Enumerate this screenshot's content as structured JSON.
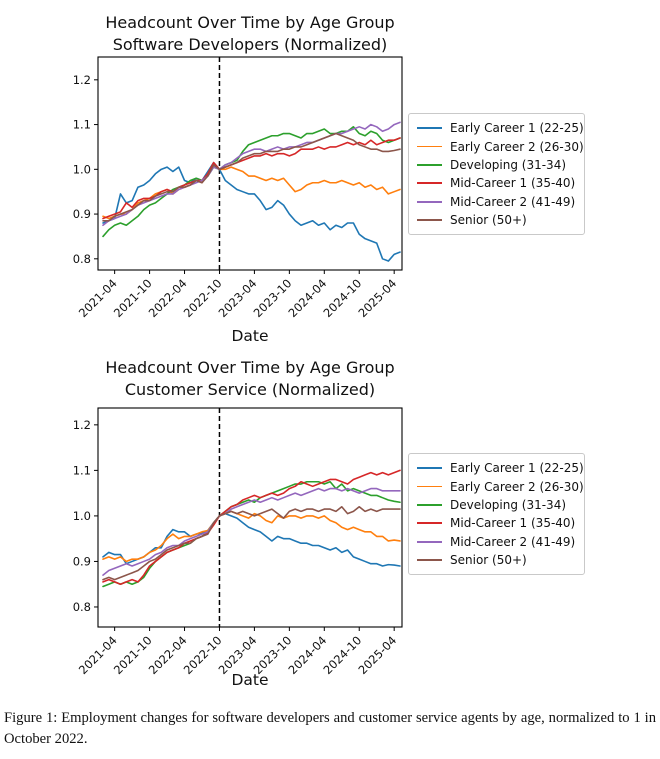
{
  "caption": "Figure 1: Employment changes for software developers and customer service agents by age, normalized to 1 in October 2022.",
  "chart_data": [
    {
      "type": "line",
      "title_line1": "Headcount Over Time by Age Group",
      "title_line2": "Software Developers (Normalized)",
      "xlabel": "Date",
      "ylabel": "",
      "grid": false,
      "legend_position": "right-outside",
      "ylim": [
        0.775,
        1.251
      ],
      "ytick_labels": [
        "0.8",
        "0.9",
        "1.0",
        "1.1",
        "1.2"
      ],
      "x_start": "2021-02",
      "x_end": "2025-05",
      "x_interval": "monthly",
      "n_points": 52,
      "xtick_labels": [
        "2021-04",
        "2021-10",
        "2022-04",
        "2022-10",
        "2023-04",
        "2023-10",
        "2024-04",
        "2024-10",
        "2025-04"
      ],
      "xtick_indices": [
        2,
        8,
        14,
        20,
        26,
        32,
        38,
        44,
        50
      ],
      "vline": {
        "label": "2022-10",
        "index": 20,
        "style": "dashed",
        "color": "#000000"
      },
      "series": [
        {
          "name": "Early Career 1 (22-25)",
          "color": "#1f77b4",
          "values": [
            0.88,
            0.885,
            0.89,
            0.945,
            0.925,
            0.93,
            0.96,
            0.965,
            0.975,
            0.99,
            1.0,
            1.005,
            0.995,
            1.005,
            0.975,
            0.97,
            0.98,
            0.975,
            0.995,
            1.015,
            1.0,
            0.975,
            0.965,
            0.955,
            0.95,
            0.945,
            0.945,
            0.93,
            0.91,
            0.915,
            0.93,
            0.92,
            0.9,
            0.885,
            0.875,
            0.88,
            0.885,
            0.875,
            0.88,
            0.865,
            0.875,
            0.87,
            0.88,
            0.88,
            0.855,
            0.845,
            0.84,
            0.835,
            0.8,
            0.795,
            0.81,
            0.815
          ]
        },
        {
          "name": "Early Career 2 (26-30)",
          "color": "#ff7f0e",
          "values": [
            0.895,
            0.89,
            0.895,
            0.9,
            0.9,
            0.91,
            0.925,
            0.93,
            0.935,
            0.945,
            0.95,
            0.955,
            0.945,
            0.955,
            0.96,
            0.965,
            0.975,
            0.97,
            0.99,
            1.01,
            1.0,
            1.0,
            1.005,
            1.0,
            0.995,
            0.985,
            0.985,
            0.98,
            0.975,
            0.98,
            0.975,
            0.98,
            0.965,
            0.95,
            0.955,
            0.965,
            0.97,
            0.97,
            0.975,
            0.97,
            0.97,
            0.975,
            0.97,
            0.965,
            0.97,
            0.96,
            0.965,
            0.955,
            0.96,
            0.945,
            0.95,
            0.955
          ]
        },
        {
          "name": "Developing (31-34)",
          "color": "#2ca02c",
          "values": [
            0.85,
            0.865,
            0.875,
            0.88,
            0.875,
            0.885,
            0.895,
            0.91,
            0.92,
            0.925,
            0.935,
            0.945,
            0.955,
            0.96,
            0.965,
            0.975,
            0.98,
            0.975,
            0.985,
            1.005,
            1.0,
            1.01,
            1.015,
            1.02,
            1.04,
            1.055,
            1.06,
            1.065,
            1.07,
            1.075,
            1.075,
            1.08,
            1.08,
            1.075,
            1.07,
            1.08,
            1.08,
            1.085,
            1.09,
            1.08,
            1.08,
            1.085,
            1.085,
            1.095,
            1.08,
            1.075,
            1.085,
            1.08,
            1.065,
            1.06,
            1.065,
            1.07
          ]
        },
        {
          "name": "Mid-Career 1 (35-40)",
          "color": "#d62728",
          "values": [
            0.89,
            0.895,
            0.9,
            0.905,
            0.925,
            0.915,
            0.93,
            0.935,
            0.935,
            0.94,
            0.95,
            0.955,
            0.95,
            0.96,
            0.965,
            0.97,
            0.975,
            0.975,
            0.99,
            1.015,
            1.0,
            1.005,
            1.01,
            1.015,
            1.02,
            1.025,
            1.03,
            1.03,
            1.035,
            1.03,
            1.035,
            1.035,
            1.03,
            1.035,
            1.045,
            1.045,
            1.045,
            1.05,
            1.045,
            1.05,
            1.05,
            1.055,
            1.06,
            1.055,
            1.06,
            1.055,
            1.065,
            1.055,
            1.06,
            1.065,
            1.065,
            1.07
          ]
        },
        {
          "name": "Mid-Career 2 (41-49)",
          "color": "#9467bd",
          "values": [
            0.875,
            0.885,
            0.89,
            0.895,
            0.9,
            0.91,
            0.92,
            0.925,
            0.93,
            0.935,
            0.94,
            0.945,
            0.945,
            0.955,
            0.96,
            0.965,
            0.97,
            0.975,
            0.985,
            1.005,
            1.0,
            1.01,
            1.015,
            1.025,
            1.035,
            1.04,
            1.045,
            1.045,
            1.04,
            1.045,
            1.05,
            1.045,
            1.05,
            1.05,
            1.055,
            1.06,
            1.06,
            1.065,
            1.07,
            1.075,
            1.08,
            1.08,
            1.085,
            1.09,
            1.095,
            1.09,
            1.1,
            1.095,
            1.085,
            1.09,
            1.1,
            1.105
          ]
        },
        {
          "name": "Senior (50+)",
          "color": "#8c564b",
          "values": [
            0.885,
            0.885,
            0.895,
            0.9,
            0.905,
            0.91,
            0.92,
            0.93,
            0.93,
            0.94,
            0.945,
            0.95,
            0.95,
            0.96,
            0.96,
            0.965,
            0.975,
            0.97,
            0.985,
            1.01,
            1.0,
            1.005,
            1.01,
            1.015,
            1.025,
            1.03,
            1.035,
            1.035,
            1.04,
            1.04,
            1.04,
            1.045,
            1.045,
            1.05,
            1.05,
            1.055,
            1.06,
            1.065,
            1.07,
            1.075,
            1.08,
            1.075,
            1.07,
            1.065,
            1.055,
            1.05,
            1.045,
            1.045,
            1.04,
            1.04,
            1.042,
            1.045
          ]
        }
      ]
    },
    {
      "type": "line",
      "title_line1": "Headcount Over Time by Age Group",
      "title_line2": "Customer Service (Normalized)",
      "xlabel": "Date",
      "ylabel": "",
      "grid": false,
      "legend_position": "right-outside",
      "ylim": [
        0.756,
        1.237
      ],
      "ytick_labels": [
        "0.8",
        "0.9",
        "1.0",
        "1.1",
        "1.2"
      ],
      "x_start": "2021-02",
      "x_end": "2025-05",
      "x_interval": "monthly",
      "n_points": 52,
      "xtick_labels": [
        "2021-04",
        "2021-10",
        "2022-04",
        "2022-10",
        "2023-04",
        "2023-10",
        "2024-04",
        "2024-10",
        "2025-04"
      ],
      "xtick_indices": [
        2,
        8,
        14,
        20,
        26,
        32,
        38,
        44,
        50
      ],
      "vline": {
        "label": "2022-10",
        "index": 20,
        "style": "dashed",
        "color": "#000000"
      },
      "series": [
        {
          "name": "Early Career 1 (22-25)",
          "color": "#1f77b4",
          "values": [
            0.91,
            0.92,
            0.915,
            0.915,
            0.895,
            0.9,
            0.905,
            0.91,
            0.92,
            0.93,
            0.93,
            0.955,
            0.97,
            0.965,
            0.965,
            0.955,
            0.96,
            0.962,
            0.968,
            0.985,
            1.0,
            1.005,
            1.0,
            0.995,
            0.985,
            0.975,
            0.97,
            0.965,
            0.955,
            0.945,
            0.955,
            0.95,
            0.95,
            0.945,
            0.94,
            0.94,
            0.935,
            0.935,
            0.93,
            0.925,
            0.93,
            0.92,
            0.925,
            0.91,
            0.905,
            0.9,
            0.895,
            0.895,
            0.89,
            0.893,
            0.892,
            0.89
          ]
        },
        {
          "name": "Early Career 2 (26-30)",
          "color": "#ff7f0e",
          "values": [
            0.905,
            0.91,
            0.905,
            0.91,
            0.9,
            0.905,
            0.905,
            0.91,
            0.92,
            0.925,
            0.935,
            0.95,
            0.96,
            0.95,
            0.955,
            0.955,
            0.96,
            0.965,
            0.968,
            0.985,
            1.0,
            1.005,
            1.01,
            1.005,
            1.0,
            0.995,
            1.005,
            1.0,
            0.99,
            0.985,
            1.0,
            0.995,
            1.0,
            1.0,
            0.995,
            1.0,
            1.0,
            0.995,
            1.0,
            0.99,
            0.985,
            0.975,
            0.97,
            0.975,
            0.97,
            0.965,
            0.965,
            0.955,
            0.955,
            0.945,
            0.947,
            0.945
          ]
        },
        {
          "name": "Developing (31-34)",
          "color": "#2ca02c",
          "values": [
            0.845,
            0.85,
            0.855,
            0.85,
            0.855,
            0.85,
            0.855,
            0.865,
            0.885,
            0.9,
            0.91,
            0.92,
            0.925,
            0.93,
            0.935,
            0.94,
            0.95,
            0.955,
            0.965,
            0.985,
            1.0,
            1.01,
            1.02,
            1.025,
            1.03,
            1.035,
            1.03,
            1.04,
            1.045,
            1.05,
            1.055,
            1.06,
            1.065,
            1.07,
            1.07,
            1.075,
            1.075,
            1.075,
            1.07,
            1.075,
            1.06,
            1.07,
            1.055,
            1.06,
            1.055,
            1.05,
            1.045,
            1.045,
            1.04,
            1.035,
            1.032,
            1.03
          ]
        },
        {
          "name": "Mid-Career 1 (35-40)",
          "color": "#d62728",
          "values": [
            0.855,
            0.86,
            0.855,
            0.85,
            0.855,
            0.86,
            0.855,
            0.87,
            0.89,
            0.9,
            0.91,
            0.92,
            0.925,
            0.93,
            0.94,
            0.945,
            0.95,
            0.955,
            0.962,
            0.98,
            1.0,
            1.01,
            1.02,
            1.025,
            1.035,
            1.04,
            1.045,
            1.04,
            1.045,
            1.05,
            1.045,
            1.05,
            1.06,
            1.065,
            1.075,
            1.07,
            1.065,
            1.07,
            1.075,
            1.08,
            1.08,
            1.075,
            1.07,
            1.08,
            1.085,
            1.09,
            1.095,
            1.09,
            1.095,
            1.09,
            1.095,
            1.1
          ]
        },
        {
          "name": "Mid-Career 2 (41-49)",
          "color": "#9467bd",
          "values": [
            0.87,
            0.88,
            0.885,
            0.89,
            0.895,
            0.89,
            0.895,
            0.9,
            0.905,
            0.915,
            0.92,
            0.93,
            0.935,
            0.935,
            0.945,
            0.95,
            0.955,
            0.96,
            0.965,
            0.985,
            1.0,
            1.005,
            1.015,
            1.02,
            1.025,
            1.03,
            1.035,
            1.03,
            1.035,
            1.04,
            1.035,
            1.04,
            1.045,
            1.05,
            1.045,
            1.05,
            1.055,
            1.06,
            1.055,
            1.06,
            1.06,
            1.055,
            1.06,
            1.055,
            1.05,
            1.055,
            1.06,
            1.06,
            1.055,
            1.055,
            1.055,
            1.055
          ]
        },
        {
          "name": "Senior (50+)",
          "color": "#8c564b",
          "values": [
            0.86,
            0.865,
            0.86,
            0.865,
            0.87,
            0.875,
            0.88,
            0.89,
            0.9,
            0.905,
            0.915,
            0.925,
            0.93,
            0.935,
            0.94,
            0.94,
            0.95,
            0.955,
            0.96,
            0.985,
            1.0,
            1.005,
            1.01,
            1.005,
            1.01,
            1.005,
            1.0,
            1.005,
            1.01,
            1.015,
            1.005,
            0.995,
            1.01,
            1.015,
            1.01,
            1.015,
            1.015,
            1.01,
            1.015,
            1.015,
            1.01,
            1.02,
            1.005,
            1.01,
            1.02,
            1.01,
            1.015,
            1.01,
            1.015,
            1.015,
            1.015,
            1.015
          ]
        }
      ]
    }
  ]
}
